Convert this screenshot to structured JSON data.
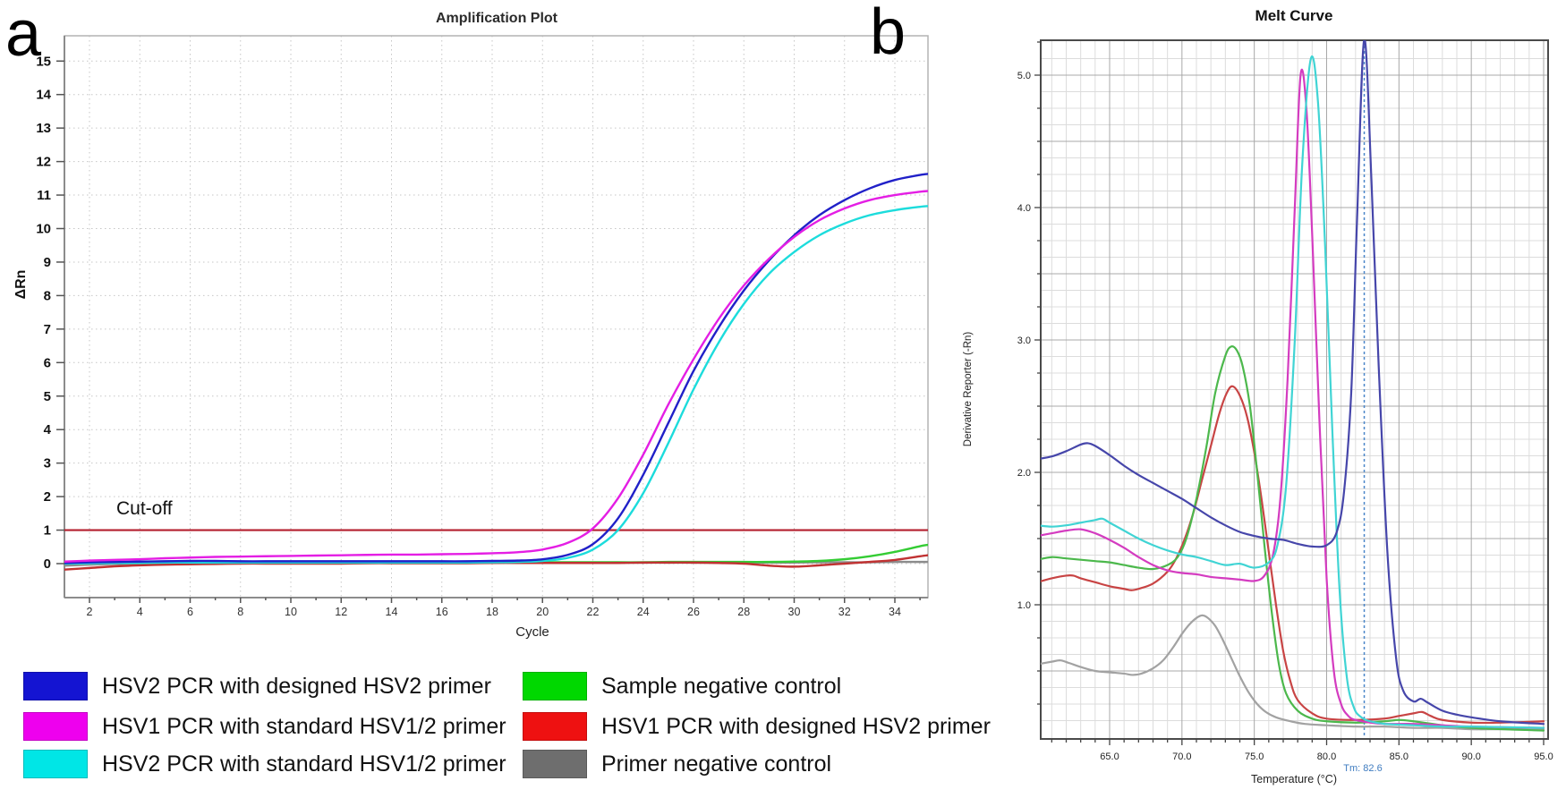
{
  "figure": {
    "panel_a_label": "a",
    "panel_b_label": "b"
  },
  "legend": {
    "items": [
      {
        "label": "HSV2 PCR with designed HSV2 primer",
        "color": "#1414d2"
      },
      {
        "label": "HSV1 PCR with standard HSV1/2 primer",
        "color": "#ee00ee"
      },
      {
        "label": "HSV2 PCR with standard HSV1/2 primer",
        "color": "#00e6e6"
      },
      {
        "label": "Sample negative control",
        "color": "#00d800"
      },
      {
        "label": "HSV1 PCR with designed HSV2 primer",
        "color": "#ee1111"
      },
      {
        "label": "Primer negative control",
        "color": "#6e6e6e"
      }
    ]
  },
  "chart_data": [
    {
      "type": "line",
      "title": "Amplification Plot",
      "xlabel": "Cycle",
      "ylabel": "ΔRn",
      "xlim": [
        1,
        35.3
      ],
      "ylim": [
        -1,
        15.7
      ],
      "xticks": [
        2,
        4,
        6,
        8,
        10,
        12,
        14,
        16,
        18,
        20,
        22,
        24,
        26,
        28,
        30,
        32,
        34
      ],
      "yticks": [
        0,
        1,
        2,
        3,
        4,
        5,
        6,
        7,
        8,
        9,
        10,
        11,
        12,
        13,
        14,
        15
      ],
      "grid": "dotted",
      "legend_position": "below-figure",
      "cutoff": {
        "label": "Cut-off",
        "y": 1,
        "color": "#b41f2e"
      },
      "series": [
        {
          "name": "HSV2 PCR with designed HSV2 primer",
          "color": "#2020c8",
          "x": [
            1,
            2,
            3,
            4,
            5,
            6,
            7,
            8,
            9,
            10,
            11,
            12,
            13,
            14,
            15,
            16,
            17,
            18,
            19,
            20,
            21,
            22,
            23,
            24,
            25,
            26,
            27,
            28,
            29,
            30,
            31,
            32,
            33,
            34,
            35,
            35.3
          ],
          "y": [
            0.02,
            0.04,
            0.05,
            0.06,
            0.07,
            0.08,
            0.08,
            0.07,
            0.07,
            0.07,
            0.07,
            0.07,
            0.07,
            0.07,
            0.07,
            0.07,
            0.07,
            0.08,
            0.09,
            0.13,
            0.26,
            0.58,
            1.35,
            2.65,
            4.2,
            5.75,
            7.05,
            8.15,
            9.05,
            9.8,
            10.4,
            10.85,
            11.2,
            11.45,
            11.6,
            11.63
          ]
        },
        {
          "name": "HSV1 PCR with standard HSV1/2 primer",
          "color": "#e41ee4",
          "x": [
            1,
            2,
            3,
            4,
            5,
            6,
            7,
            8,
            9,
            10,
            11,
            12,
            13,
            14,
            15,
            16,
            17,
            18,
            19,
            20,
            21,
            22,
            23,
            24,
            25,
            26,
            27,
            28,
            29,
            30,
            31,
            32,
            33,
            34,
            35,
            35.3
          ],
          "y": [
            0.06,
            0.09,
            0.11,
            0.13,
            0.16,
            0.18,
            0.2,
            0.21,
            0.22,
            0.23,
            0.24,
            0.25,
            0.26,
            0.27,
            0.27,
            0.28,
            0.29,
            0.31,
            0.34,
            0.42,
            0.62,
            1.05,
            1.95,
            3.25,
            4.75,
            6.1,
            7.3,
            8.3,
            9.1,
            9.75,
            10.25,
            10.6,
            10.85,
            11.0,
            11.1,
            11.12
          ]
        },
        {
          "name": "HSV2 PCR with standard HSV1/2 primer",
          "color": "#1cdcdc",
          "x": [
            1,
            2,
            3,
            4,
            5,
            6,
            7,
            8,
            9,
            10,
            11,
            12,
            13,
            14,
            15,
            16,
            17,
            18,
            19,
            20,
            21,
            22,
            23,
            24,
            25,
            26,
            27,
            28,
            29,
            30,
            31,
            32,
            33,
            34,
            35,
            35.3
          ],
          "y": [
            0.0,
            0.01,
            0.02,
            0.02,
            0.03,
            0.03,
            0.03,
            0.03,
            0.03,
            0.03,
            0.03,
            0.03,
            0.03,
            0.03,
            0.03,
            0.03,
            0.03,
            0.04,
            0.05,
            0.08,
            0.17,
            0.42,
            1.0,
            2.1,
            3.6,
            5.2,
            6.6,
            7.75,
            8.65,
            9.3,
            9.8,
            10.15,
            10.4,
            10.55,
            10.65,
            10.67
          ]
        },
        {
          "name": "Sample negative control",
          "color": "#34cc34",
          "x": [
            1,
            2,
            3,
            4,
            5,
            6,
            7,
            8,
            9,
            10,
            11,
            12,
            13,
            14,
            15,
            16,
            17,
            18,
            19,
            20,
            21,
            22,
            23,
            24,
            25,
            26,
            27,
            28,
            29,
            30,
            31,
            32,
            33,
            34,
            35,
            35.3
          ],
          "y": [
            0.02,
            0.03,
            0.03,
            0.04,
            0.04,
            0.04,
            0.04,
            0.04,
            0.04,
            0.04,
            0.04,
            0.04,
            0.04,
            0.04,
            0.04,
            0.04,
            0.04,
            0.04,
            0.04,
            0.04,
            0.04,
            0.04,
            0.04,
            0.04,
            0.05,
            0.05,
            0.05,
            0.05,
            0.05,
            0.06,
            0.08,
            0.13,
            0.22,
            0.35,
            0.52,
            0.56
          ]
        },
        {
          "name": "HSV1 PCR with designed HSV2 primer",
          "color": "#c03232",
          "x": [
            1,
            2,
            3,
            4,
            5,
            6,
            7,
            8,
            9,
            10,
            11,
            12,
            13,
            14,
            15,
            16,
            17,
            18,
            19,
            20,
            21,
            22,
            23,
            24,
            25,
            26,
            27,
            28,
            29,
            30,
            31,
            32,
            33,
            34,
            35,
            35.3
          ],
          "y": [
            -0.18,
            -0.13,
            -0.08,
            -0.05,
            -0.03,
            -0.02,
            -0.01,
            0.0,
            0.0,
            0.0,
            0.0,
            0.0,
            0.01,
            0.01,
            0.01,
            0.01,
            0.01,
            0.02,
            0.02,
            0.02,
            0.02,
            0.02,
            0.02,
            0.03,
            0.03,
            0.03,
            0.02,
            0.0,
            -0.06,
            -0.09,
            -0.05,
            0.0,
            0.05,
            0.11,
            0.22,
            0.25
          ]
        },
        {
          "name": "Primer negative control",
          "color": "#8c8c8c",
          "x": [
            1,
            2,
            3,
            4,
            5,
            6,
            7,
            8,
            9,
            10,
            11,
            12,
            13,
            14,
            15,
            16,
            17,
            18,
            19,
            20,
            21,
            22,
            23,
            24,
            25,
            26,
            27,
            28,
            29,
            30,
            31,
            32,
            33,
            34,
            35,
            35.3
          ],
          "y": [
            -0.06,
            -0.03,
            -0.01,
            0.0,
            0.01,
            0.02,
            0.02,
            0.02,
            0.02,
            0.02,
            0.02,
            0.02,
            0.02,
            0.02,
            0.02,
            0.02,
            0.02,
            0.02,
            0.03,
            0.03,
            0.03,
            0.03,
            0.03,
            0.03,
            0.03,
            0.03,
            0.03,
            0.03,
            0.03,
            0.03,
            0.04,
            0.04,
            0.04,
            0.05,
            0.05,
            0.05
          ]
        }
      ]
    },
    {
      "type": "line",
      "title": "Melt Curve",
      "xlabel": "Temperature (°C)",
      "ylabel": "Derivative Reporter (-Rn)",
      "xlim": [
        60.2,
        95.3
      ],
      "ylim": [
        0,
        5.27
      ],
      "xticks": [
        65,
        70,
        75,
        80,
        85,
        90,
        95
      ],
      "xtick_labels": [
        "65.0",
        "70.0",
        "75.0",
        "80.0",
        "85.0",
        "90.0",
        "95.0"
      ],
      "yticks": [
        1,
        2,
        3,
        4,
        5
      ],
      "ytick_labels": [
        "1.0",
        "2.0",
        "3.0",
        "4.0",
        "5.0"
      ],
      "grid": "fine-mesh",
      "tm_line": {
        "label": "Tm: 82.6",
        "x": 82.6,
        "color": "#4a86c8"
      },
      "series": [
        {
          "name": "HSV2 PCR with designed HSV2 primer",
          "color": "#4646aa",
          "x": [
            60,
            61,
            62,
            63,
            63.5,
            64,
            65,
            66,
            67,
            68,
            69,
            70,
            71,
            72,
            73,
            74,
            75,
            76,
            77,
            78,
            79,
            80,
            80.7,
            81.2,
            81.7,
            82.1,
            82.6,
            83.1,
            83.6,
            84.2,
            84.8,
            85.3,
            86,
            86.5,
            87,
            88,
            89,
            90,
            92,
            95
          ],
          "y": [
            2.1,
            2.12,
            2.16,
            2.21,
            2.22,
            2.2,
            2.13,
            2.05,
            1.98,
            1.92,
            1.86,
            1.8,
            1.73,
            1.66,
            1.6,
            1.55,
            1.52,
            1.5,
            1.49,
            1.46,
            1.44,
            1.45,
            1.55,
            1.85,
            2.6,
            3.9,
            5.27,
            4.2,
            2.8,
            1.4,
            0.6,
            0.35,
            0.27,
            0.29,
            0.26,
            0.2,
            0.17,
            0.15,
            0.12,
            0.1
          ]
        },
        {
          "name": "HSV1 PCR with standard HSV1/2 primer",
          "color": "#d43cc0",
          "x": [
            60,
            61,
            62,
            63,
            64,
            65,
            66,
            67,
            68,
            69,
            70,
            71,
            72,
            73,
            74,
            75,
            75.7,
            76.3,
            76.8,
            77.3,
            77.8,
            78.2,
            78.6,
            79,
            79.5,
            80,
            80.5,
            81,
            81.5,
            82,
            83,
            84,
            86,
            88,
            90,
            95
          ],
          "y": [
            1.52,
            1.54,
            1.56,
            1.57,
            1.54,
            1.49,
            1.43,
            1.36,
            1.3,
            1.26,
            1.24,
            1.23,
            1.21,
            1.2,
            1.19,
            1.18,
            1.22,
            1.38,
            1.8,
            2.7,
            4.0,
            5.0,
            4.75,
            3.8,
            2.4,
            1.2,
            0.5,
            0.25,
            0.16,
            0.13,
            0.11,
            0.1,
            0.1,
            0.09,
            0.08,
            0.07
          ]
        },
        {
          "name": "HSV2 PCR with standard HSV1/2 primer",
          "color": "#40d4d4",
          "x": [
            60,
            61,
            62,
            63,
            64,
            64.5,
            65,
            66,
            67,
            68,
            69,
            70,
            71,
            72,
            73,
            74,
            75,
            76,
            76.6,
            77.2,
            77.8,
            78.3,
            78.9,
            79.4,
            79.9,
            80.4,
            80.9,
            81.4,
            81.9,
            82.4,
            83,
            84,
            86,
            88,
            90,
            95
          ],
          "y": [
            1.6,
            1.59,
            1.6,
            1.62,
            1.64,
            1.65,
            1.62,
            1.56,
            1.5,
            1.45,
            1.41,
            1.38,
            1.36,
            1.33,
            1.3,
            1.31,
            1.28,
            1.32,
            1.45,
            1.9,
            3.0,
            4.3,
            5.12,
            4.8,
            3.7,
            2.3,
            1.1,
            0.45,
            0.22,
            0.15,
            0.12,
            0.1,
            0.09,
            0.08,
            0.08,
            0.07
          ]
        },
        {
          "name": "Sample negative control",
          "color": "#4cb84c",
          "x": [
            60,
            61,
            62,
            63,
            64,
            65,
            66,
            67,
            68,
            69,
            69.7,
            70.3,
            71,
            71.7,
            72.3,
            73,
            73.4,
            73.8,
            74.2,
            74.7,
            75.2,
            75.7,
            76.2,
            76.7,
            77.2,
            78,
            79,
            80,
            82,
            84,
            85,
            86,
            88,
            90,
            95
          ],
          "y": [
            1.34,
            1.36,
            1.35,
            1.34,
            1.33,
            1.32,
            1.3,
            1.28,
            1.27,
            1.3,
            1.36,
            1.5,
            1.8,
            2.2,
            2.6,
            2.88,
            2.95,
            2.92,
            2.8,
            2.5,
            2.0,
            1.45,
            0.95,
            0.55,
            0.33,
            0.2,
            0.14,
            0.12,
            0.11,
            0.12,
            0.13,
            0.12,
            0.09,
            0.07,
            0.05
          ]
        },
        {
          "name": "HSV1 PCR with designed HSV2 primer",
          "color": "#c84444",
          "x": [
            60,
            61,
            62,
            62.5,
            63,
            64,
            65,
            66,
            66.5,
            67,
            68,
            69,
            69.6,
            70.2,
            70.8,
            71.4,
            72,
            72.6,
            73.1,
            73.5,
            74,
            74.5,
            75,
            75.5,
            76,
            76.5,
            77,
            77.5,
            78,
            79,
            80,
            82,
            84,
            85,
            86,
            86.6,
            87.2,
            88,
            90,
            92,
            95
          ],
          "y": [
            1.17,
            1.2,
            1.22,
            1.22,
            1.2,
            1.17,
            1.14,
            1.12,
            1.11,
            1.12,
            1.16,
            1.25,
            1.35,
            1.5,
            1.7,
            1.95,
            2.2,
            2.45,
            2.6,
            2.65,
            2.58,
            2.42,
            2.15,
            1.8,
            1.4,
            1.0,
            0.65,
            0.42,
            0.28,
            0.18,
            0.14,
            0.13,
            0.14,
            0.16,
            0.18,
            0.19,
            0.16,
            0.13,
            0.11,
            0.11,
            0.12
          ]
        },
        {
          "name": "Primer negative control",
          "color": "#a2a2a2",
          "x": [
            60,
            61,
            61.6,
            62.2,
            63,
            64,
            65,
            66,
            66.6,
            67.2,
            68,
            68.7,
            69.4,
            70,
            70.5,
            71,
            71.4,
            71.8,
            72.3,
            72.8,
            73.4,
            74,
            74.6,
            75.2,
            75.8,
            76.5,
            77.5,
            78.5,
            80,
            82,
            84,
            86,
            88,
            90,
            92,
            95
          ],
          "y": [
            0.55,
            0.57,
            0.58,
            0.56,
            0.53,
            0.5,
            0.49,
            0.48,
            0.47,
            0.48,
            0.52,
            0.58,
            0.68,
            0.78,
            0.85,
            0.9,
            0.92,
            0.9,
            0.84,
            0.74,
            0.6,
            0.46,
            0.34,
            0.25,
            0.19,
            0.15,
            0.12,
            0.1,
            0.09,
            0.08,
            0.08,
            0.07,
            0.07,
            0.06,
            0.06,
            0.06
          ]
        }
      ]
    }
  ]
}
